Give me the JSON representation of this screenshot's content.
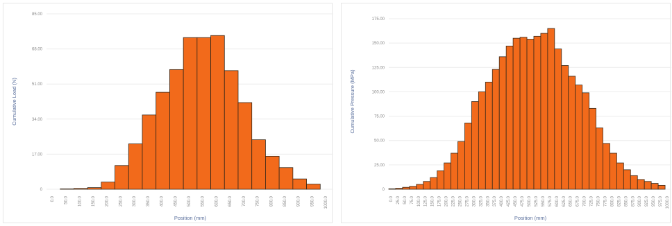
{
  "colors": {
    "bar": "#f26a1b",
    "bar_stroke": "#3a2a1a",
    "grid": "#ececec",
    "axis_title": "#5a6f9c"
  },
  "chart_data": [
    {
      "type": "bar",
      "title": "",
      "xlabel": "Position (mm)",
      "ylabel": "Cumulative Load (N)",
      "ylim": [
        0,
        85
      ],
      "yticks": [
        0,
        17,
        34,
        51,
        68,
        85
      ],
      "ytick_labels": [
        "0",
        "17.00",
        "34.00",
        "51.00",
        "68.00",
        "85.00"
      ],
      "grid": true,
      "categories": [
        "0.0",
        "50.0",
        "100.0",
        "150.0",
        "200.0",
        "250.0",
        "300.0",
        "350.0",
        "400.0",
        "450.0",
        "500.0",
        "550.0",
        "600.0",
        "650.0",
        "700.0",
        "750.0",
        "800.0",
        "850.0",
        "900.0",
        "950.0",
        "1000.0"
      ],
      "values": [
        0,
        0.2,
        0.4,
        0.8,
        3.5,
        11.5,
        22,
        36,
        47,
        58,
        73.5,
        73.5,
        74.5,
        57.5,
        42,
        24,
        16,
        10.5,
        5,
        2.5,
        0
      ]
    },
    {
      "type": "bar",
      "title": "",
      "xlabel": "Position (mm)",
      "ylabel": "Cumulative Pressure (MPa)",
      "ylim": [
        0,
        180
      ],
      "yticks": [
        0,
        25,
        50,
        75,
        100,
        125,
        150,
        175
      ],
      "ytick_labels": [
        "0",
        "25.00",
        "50.00",
        "75.00",
        "100.00",
        "125.00",
        "150.00",
        "175.00"
      ],
      "grid": true,
      "categories": [
        "0.0",
        "25.0",
        "50.0",
        "75.0",
        "100.0",
        "125.0",
        "150.0",
        "175.0",
        "200.0",
        "225.0",
        "250.0",
        "275.0",
        "300.0",
        "325.0",
        "350.0",
        "375.0",
        "400.0",
        "425.0",
        "450.0",
        "475.0",
        "500.0",
        "525.0",
        "550.0",
        "575.0",
        "600.0",
        "625.0",
        "650.0",
        "675.0",
        "700.0",
        "725.0",
        "750.0",
        "775.0",
        "800.0",
        "825.0",
        "850.0",
        "875.0",
        "900.0",
        "925.0",
        "950.0",
        "975.0",
        "1000.0"
      ],
      "values": [
        0.5,
        1,
        2,
        3,
        5,
        8,
        12,
        19,
        27,
        37,
        49,
        68,
        90,
        100,
        110,
        123,
        136,
        147,
        155,
        156,
        154,
        157,
        160,
        165,
        144,
        127,
        116,
        107,
        99,
        83,
        63,
        47,
        37,
        27,
        20,
        14,
        10,
        8,
        6,
        4,
        0
      ]
    }
  ]
}
